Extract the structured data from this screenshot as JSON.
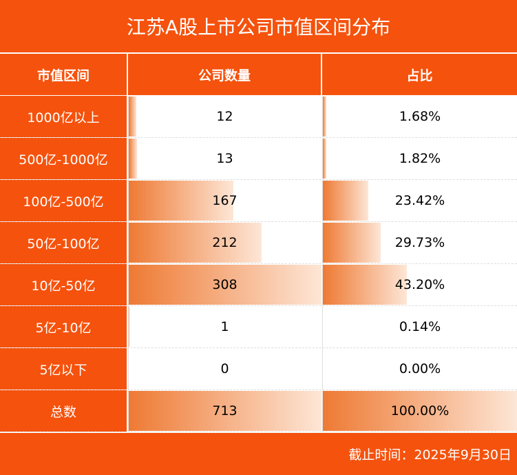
{
  "title": "江苏A股上市公司市值区间分布",
  "table": {
    "header": [
      "市值区间",
      "公司数量",
      "占比"
    ],
    "rows": [
      {
        "range": "1000亿以上",
        "count": 12,
        "share": "1.68%"
      },
      {
        "range": "500亿-1000亿",
        "count": 13,
        "share": "1.82%"
      },
      {
        "range": "100亿-500亿",
        "count": 167,
        "share": "23.42%"
      },
      {
        "range": "50亿-100亿",
        "count": 212,
        "share": "29.73%"
      },
      {
        "range": "10亿-50亿",
        "count": 308,
        "share": "43.20%"
      },
      {
        "range": "5亿-10亿",
        "count": 1,
        "share": "0.14%"
      },
      {
        "range": "5亿以下",
        "count": 0,
        "share": "0.00%"
      },
      {
        "range": "总数",
        "count": 713,
        "share": "100.00%"
      }
    ]
  },
  "footer": "截止时间：2025年9月30日"
}
